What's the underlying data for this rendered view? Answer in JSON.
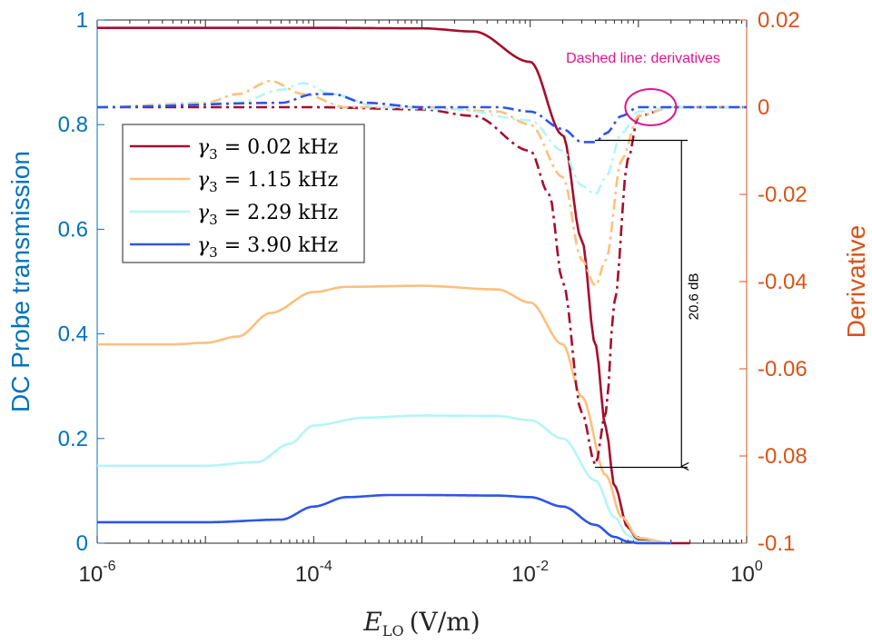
{
  "chart_data": {
    "type": "line",
    "xscale": "log",
    "xlim": [
      1e-06,
      1
    ],
    "xlabel": "E_LO (V/m)",
    "xlabel_main": "E",
    "xlabel_sub": "LO",
    "xlabel_units": "(V/m)",
    "x_ticks": [
      {
        "value": 1e-06,
        "base": "10",
        "exp": "-6"
      },
      {
        "value": 0.0001,
        "base": "10",
        "exp": "-4"
      },
      {
        "value": 0.01,
        "base": "10",
        "exp": "-2"
      },
      {
        "value": 1,
        "base": "10",
        "exp": "0"
      }
    ],
    "ylabel_left": "DC Probe transmission",
    "ylim_left": [
      0,
      1
    ],
    "yticks_left": [
      "0",
      "0.2",
      "0.4",
      "0.6",
      "0.8",
      "1"
    ],
    "ylabel_right": "Derivative",
    "ylim_right": [
      -0.1,
      0.02
    ],
    "yticks_right": [
      "-0.1",
      "-0.08",
      "-0.06",
      "-0.04",
      "-0.02",
      "0",
      "0.02"
    ],
    "colors": {
      "left_axis": "#0072BD",
      "right_axis": "#D95319",
      "annotation": "#E0148C"
    },
    "legend": {
      "position": "upper-left",
      "entries": [
        {
          "label": "γ3 = 0.02 kHz",
          "symbol": "γ",
          "sub": "3",
          "value": " = 0.02 kHz",
          "color": "#A50E2D"
        },
        {
          "label": "γ3 = 1.15 kHz",
          "symbol": "γ",
          "sub": "3",
          "value": " = 1.15 kHz",
          "color": "#FDBF7E"
        },
        {
          "label": "γ3 = 2.29 kHz",
          "symbol": "γ",
          "sub": "3",
          "value": " = 2.29 kHz",
          "color": "#B4F5F5"
        },
        {
          "label": "γ3 = 3.90 kHz",
          "symbol": "γ",
          "sub": "3",
          "value": " = 3.90 kHz",
          "color": "#2E55E8"
        }
      ]
    },
    "series": [
      {
        "name": "γ3 = 0.02 kHz",
        "axis": "left",
        "style": "solid",
        "color": "#A50E2D",
        "x": [
          1e-06,
          1e-05,
          0.0001,
          0.001,
          0.003,
          0.01,
          0.02,
          0.03,
          0.04,
          0.05,
          0.06,
          0.08,
          0.1,
          0.2,
          0.3
        ],
        "y": [
          0.985,
          0.985,
          0.985,
          0.984,
          0.978,
          0.92,
          0.78,
          0.58,
          0.38,
          0.22,
          0.11,
          0.03,
          0.005,
          0.0,
          0.0
        ]
      },
      {
        "name": "γ3 = 1.15 kHz",
        "axis": "left",
        "style": "solid",
        "color": "#FDBF7E",
        "x": [
          1e-06,
          5e-06,
          1e-05,
          2e-05,
          4e-05,
          0.0001,
          0.0002,
          0.001,
          0.005,
          0.01,
          0.02,
          0.03,
          0.05,
          0.07,
          0.1,
          0.2
        ],
        "y": [
          0.38,
          0.38,
          0.383,
          0.395,
          0.44,
          0.48,
          0.49,
          0.492,
          0.485,
          0.46,
          0.38,
          0.28,
          0.13,
          0.05,
          0.01,
          0.0
        ]
      },
      {
        "name": "γ3 = 2.29 kHz",
        "axis": "left",
        "style": "solid",
        "color": "#B4F5F5",
        "x": [
          1e-06,
          1e-05,
          3e-05,
          6e-05,
          0.0001,
          0.0003,
          0.001,
          0.005,
          0.01,
          0.02,
          0.04,
          0.06,
          0.08,
          0.1,
          0.2
        ],
        "y": [
          0.148,
          0.148,
          0.155,
          0.19,
          0.225,
          0.24,
          0.244,
          0.243,
          0.235,
          0.2,
          0.12,
          0.05,
          0.015,
          0.003,
          0.0
        ]
      },
      {
        "name": "γ3 = 3.90 kHz",
        "axis": "left",
        "style": "solid",
        "color": "#2E55E8",
        "x": [
          1e-06,
          1e-05,
          5e-05,
          0.0001,
          0.0002,
          0.0005,
          0.001,
          0.005,
          0.01,
          0.02,
          0.04,
          0.06,
          0.08,
          0.1,
          0.2
        ],
        "y": [
          0.04,
          0.04,
          0.045,
          0.07,
          0.088,
          0.092,
          0.092,
          0.091,
          0.088,
          0.07,
          0.035,
          0.012,
          0.003,
          0.0,
          0.0
        ]
      },
      {
        "name": "0.02 kHz derivative",
        "axis": "right",
        "style": "dashdot",
        "color": "#A50E2D",
        "x": [
          1e-06,
          1e-05,
          0.0001,
          0.001,
          0.003,
          0.01,
          0.015,
          0.02,
          0.03,
          0.04,
          0.05,
          0.06,
          0.08,
          0.1,
          0.2,
          1
        ],
        "y": [
          0.0,
          0.0,
          0.0,
          -0.0005,
          -0.002,
          -0.01,
          -0.02,
          -0.04,
          -0.07,
          -0.082,
          -0.07,
          -0.045,
          -0.012,
          -0.002,
          0.0,
          0.0
        ]
      },
      {
        "name": "1.15 kHz derivative",
        "axis": "right",
        "style": "dashdot",
        "color": "#FDBF7E",
        "x": [
          1e-06,
          1e-05,
          2e-05,
          4e-05,
          8e-05,
          0.0002,
          0.001,
          0.005,
          0.01,
          0.02,
          0.03,
          0.04,
          0.05,
          0.07,
          0.1,
          0.2,
          1
        ],
        "y": [
          0.0,
          0.001,
          0.003,
          0.006,
          0.003,
          0.0,
          0.0,
          -0.001,
          -0.004,
          -0.016,
          -0.035,
          -0.041,
          -0.035,
          -0.012,
          -0.002,
          0.0,
          0.0
        ]
      },
      {
        "name": "2.29 kHz derivative",
        "axis": "right",
        "style": "dashdot",
        "color": "#B4F5F5",
        "x": [
          1e-06,
          2e-05,
          5e-05,
          8e-05,
          0.00015,
          0.0004,
          0.002,
          0.01,
          0.02,
          0.03,
          0.04,
          0.05,
          0.07,
          0.1,
          0.2,
          1
        ],
        "y": [
          0.0,
          0.001,
          0.004,
          0.0055,
          0.003,
          0.0,
          -0.0005,
          -0.003,
          -0.01,
          -0.018,
          -0.02,
          -0.016,
          -0.006,
          -0.001,
          0.0,
          0.0
        ]
      },
      {
        "name": "3.90 kHz derivative",
        "axis": "right",
        "style": "dashdot",
        "color": "#2E55E8",
        "x": [
          1e-06,
          5e-05,
          0.0001,
          0.00015,
          0.0003,
          0.001,
          0.005,
          0.01,
          0.02,
          0.03,
          0.04,
          0.05,
          0.07,
          0.1,
          0.2,
          1
        ],
        "y": [
          0.0,
          0.001,
          0.003,
          0.003,
          0.001,
          0.0,
          0.0,
          -0.001,
          -0.005,
          -0.008,
          -0.008,
          -0.006,
          -0.002,
          0.0,
          0.0,
          0.0
        ]
      }
    ],
    "annotations": {
      "derivatives_note": "Dashed line: derivatives",
      "db_label": "20.6 dB",
      "db_arrow": {
        "x": 0.25,
        "y_top": 0.77,
        "y_bottom": 0.145
      },
      "circle_center": {
        "x": 0.13,
        "y_right": 0.0
      }
    }
  }
}
